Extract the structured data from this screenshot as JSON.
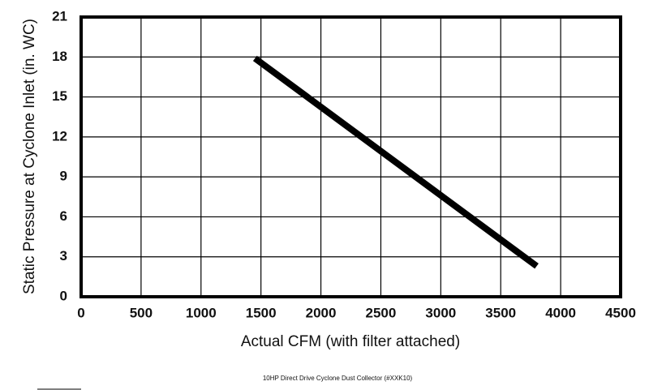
{
  "chart_data": {
    "type": "line",
    "x_label": "Actual CFM (with filter attached)",
    "y_label": "Static Pressure at Cyclone Inlet (in. WC)",
    "caption": "10HP Direct Drive Cyclone Dust Collector (#XXK10)",
    "x": [
      1450,
      3800
    ],
    "values": [
      17.9,
      2.3
    ],
    "color": "#000000",
    "xlim": [
      0,
      4500
    ],
    "xticks": [
      0,
      500,
      1000,
      1500,
      2000,
      2500,
      3000,
      3500,
      4000,
      4500
    ],
    "ylim": [
      0,
      21
    ],
    "yticks": [
      0,
      3,
      6,
      9,
      12,
      15,
      18,
      21
    ],
    "grid": true
  }
}
